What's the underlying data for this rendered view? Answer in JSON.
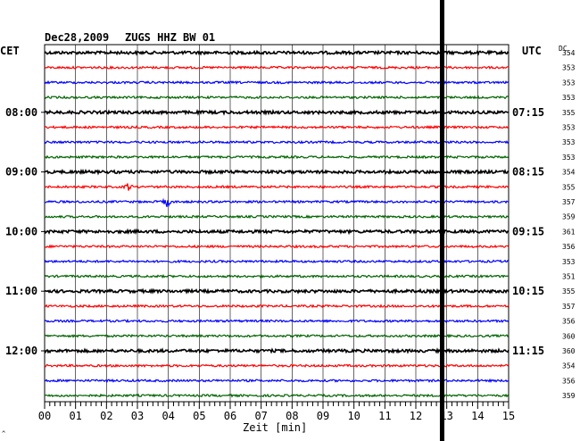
{
  "header": {
    "date": "Dec28,2009",
    "station": "ZUGS HHZ BW 01",
    "left_timezone": "CET",
    "right_timezone": "UTC",
    "dc_label": "DC"
  },
  "footer": {
    "xlabel": "Zeit [min]",
    "corner_mark": "^"
  },
  "colors": {
    "trace_cycle": [
      "#000000",
      "#ff0000",
      "#0000ff",
      "#006400"
    ],
    "grid": "#000000",
    "marker": "#000000"
  },
  "chart_data": {
    "type": "line",
    "title": "Dec28,2009  ZUGS HHZ BW 01",
    "xlabel": "Zeit [min]",
    "ylabel": "",
    "xlim": [
      0,
      15
    ],
    "x_ticks": [
      "00",
      "01",
      "02",
      "03",
      "04",
      "05",
      "06",
      "07",
      "08",
      "09",
      "10",
      "11",
      "12",
      "13",
      "14",
      "15"
    ],
    "grid": true,
    "trace_count": 24,
    "minutes_per_trace": 15,
    "left_hour_labels": [
      {
        "trace_index": 4,
        "label": "08:00"
      },
      {
        "trace_index": 8,
        "label": "09:00"
      },
      {
        "trace_index": 12,
        "label": "10:00"
      },
      {
        "trace_index": 16,
        "label": "11:00"
      },
      {
        "trace_index": 20,
        "label": "12:00"
      }
    ],
    "right_hour_labels": [
      {
        "trace_index": 4,
        "label": "07:15"
      },
      {
        "trace_index": 8,
        "label": "08:15"
      },
      {
        "trace_index": 12,
        "label": "09:15"
      },
      {
        "trace_index": 16,
        "label": "10:15"
      },
      {
        "trace_index": 20,
        "label": "11:15"
      }
    ],
    "dc_values": [
      354,
      353,
      353,
      353,
      355,
      353,
      353,
      353,
      354,
      355,
      357,
      359,
      361,
      356,
      353,
      351,
      355,
      357,
      356,
      360,
      360,
      354,
      356,
      359
    ],
    "marker_minute": 12.85,
    "events": [
      {
        "trace_index": 9,
        "minute": 2.7,
        "size": 3
      },
      {
        "trace_index": 10,
        "minute": 3.95,
        "size": 4
      }
    ]
  }
}
